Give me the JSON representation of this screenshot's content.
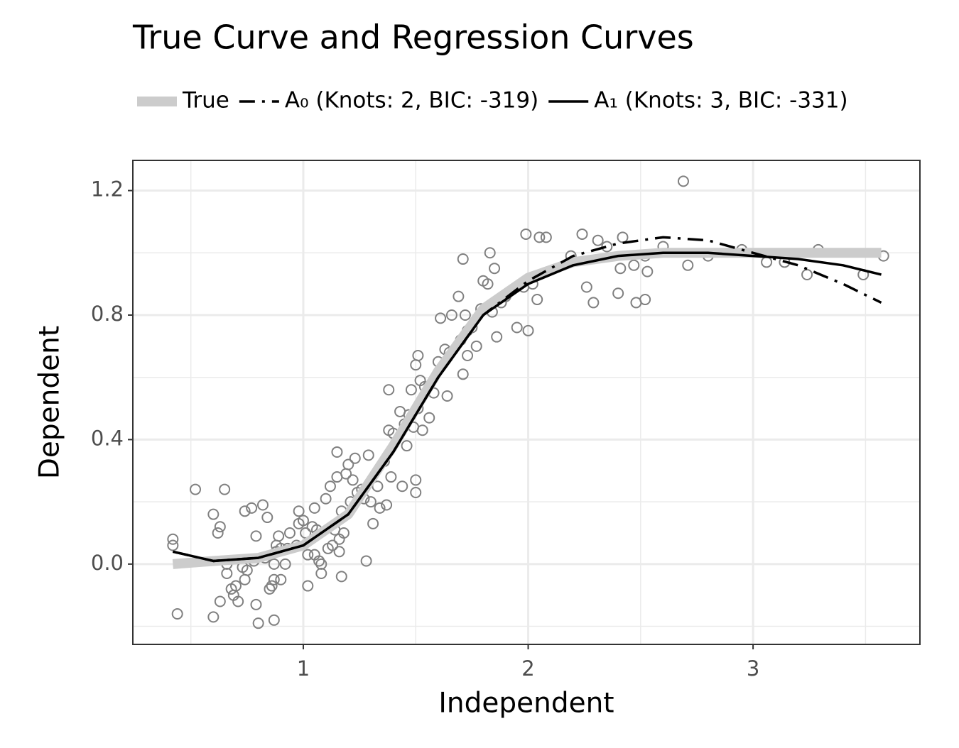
{
  "chart_data": {
    "type": "line",
    "title": "True Curve and Regression Curves",
    "xlabel": "Independent",
    "ylabel": "Dependent",
    "xlim": [
      0.242,
      3.742
    ],
    "ylim": [
      -0.258,
      1.297
    ],
    "xticks": [
      1,
      2,
      3
    ],
    "yticks": [
      {
        "value": 0,
        "label": "0.0"
      },
      0.4,
      0.8,
      1.2
    ],
    "xminorticks": [
      0.5,
      1.5,
      2.5,
      3.5
    ],
    "yminorticks": [
      -0.2,
      0.2,
      0.6,
      1.0
    ],
    "grid": true,
    "legend": "top",
    "x": [
      0.42,
      0.6,
      0.8,
      1.0,
      1.2,
      1.4,
      1.6,
      1.8,
      2.0,
      2.2,
      2.4,
      2.6,
      2.8,
      3.0,
      3.2,
      3.4,
      3.57
    ],
    "series": [
      {
        "name": "True",
        "color": "#cccccc",
        "width": 14,
        "dash": "solid",
        "values": [
          0.0,
          0.01,
          0.02,
          0.06,
          0.16,
          0.38,
          0.62,
          0.82,
          0.92,
          0.97,
          0.99,
          1.0,
          1.0,
          1.0,
          1.0,
          1.0,
          1.0
        ]
      },
      {
        "name": "A₀ (Knots: 2, BIC: -319)",
        "color": "#000000",
        "width": 3.5,
        "dash": "dashdot",
        "values": [
          0.04,
          0.01,
          0.02,
          0.06,
          0.16,
          0.36,
          0.6,
          0.8,
          0.91,
          0.99,
          1.03,
          1.05,
          1.04,
          1.0,
          0.96,
          0.9,
          0.84
        ]
      },
      {
        "name": "A₁ (Knots: 3, BIC: -331)",
        "color": "#000000",
        "width": 3.5,
        "dash": "solid",
        "values": [
          0.04,
          0.01,
          0.02,
          0.06,
          0.16,
          0.36,
          0.6,
          0.8,
          0.9,
          0.96,
          0.99,
          1.0,
          1.0,
          0.99,
          0.98,
          0.96,
          0.93
        ]
      }
    ],
    "points": {
      "color": "#808080",
      "x": [
        0.42,
        0.42,
        0.44,
        0.52,
        0.6,
        0.62,
        0.63,
        0.6,
        0.63,
        0.65,
        0.66,
        0.66,
        0.68,
        0.69,
        0.7,
        0.71,
        0.73,
        0.74,
        0.74,
        0.75,
        0.77,
        0.78,
        0.79,
        0.79,
        0.8,
        0.82,
        0.83,
        0.84,
        0.85,
        0.86,
        0.87,
        0.87,
        0.87,
        0.88,
        0.88,
        0.89,
        0.9,
        0.9,
        0.92,
        0.93,
        0.94,
        0.97,
        0.98,
        0.98,
        1.0,
        1.01,
        1.02,
        1.02,
        1.04,
        1.05,
        1.05,
        1.06,
        1.07,
        1.08,
        1.08,
        1.1,
        1.11,
        1.12,
        1.13,
        1.14,
        1.15,
        1.15,
        1.16,
        1.16,
        1.17,
        1.17,
        1.18,
        1.19,
        1.2,
        1.21,
        1.22,
        1.23,
        1.24,
        1.26,
        1.27,
        1.28,
        1.29,
        1.3,
        1.31,
        1.33,
        1.34,
        1.36,
        1.37,
        1.38,
        1.38,
        1.39,
        1.4,
        1.43,
        1.44,
        1.45,
        1.46,
        1.47,
        1.48,
        1.49,
        1.5,
        1.5,
        1.5,
        1.51,
        1.51,
        1.52,
        1.53,
        1.54,
        1.56,
        1.58,
        1.6,
        1.61,
        1.63,
        1.64,
        1.65,
        1.66,
        1.69,
        1.7,
        1.71,
        1.71,
        1.72,
        1.73,
        1.73,
        1.75,
        1.77,
        1.79,
        1.8,
        1.82,
        1.83,
        1.84,
        1.85,
        1.86,
        1.88,
        1.9,
        1.95,
        1.98,
        1.99,
        2.0,
        2.02,
        2.04,
        2.05,
        2.08,
        2.19,
        2.24,
        2.26,
        2.29,
        2.31,
        2.35,
        2.4,
        2.41,
        2.42,
        2.47,
        2.48,
        2.52,
        2.52,
        2.53,
        2.6,
        2.69,
        2.71,
        2.8,
        2.95,
        3.06,
        3.14,
        3.24,
        3.29,
        3.49,
        3.58
      ],
      "y": [
        0.08,
        0.06,
        -0.16,
        0.24,
        0.16,
        0.1,
        0.12,
        -0.17,
        -0.12,
        0.24,
        0.0,
        -0.03,
        -0.08,
        -0.1,
        -0.07,
        -0.12,
        -0.01,
        0.17,
        -0.05,
        -0.02,
        0.18,
        0.01,
        0.09,
        -0.13,
        -0.19,
        0.19,
        0.02,
        0.15,
        -0.08,
        -0.07,
        -0.18,
        0.0,
        -0.05,
        0.06,
        0.04,
        0.09,
        -0.05,
        0.05,
        0.0,
        0.05,
        0.1,
        0.06,
        0.17,
        0.13,
        0.14,
        0.1,
        -0.07,
        0.03,
        0.12,
        0.18,
        0.03,
        0.11,
        0.01,
        -0.03,
        0.0,
        0.21,
        0.05,
        0.25,
        0.06,
        0.11,
        0.36,
        0.28,
        0.08,
        0.04,
        -0.04,
        0.17,
        0.1,
        0.29,
        0.32,
        0.2,
        0.27,
        0.34,
        0.23,
        0.24,
        0.21,
        0.01,
        0.35,
        0.2,
        0.13,
        0.25,
        0.18,
        0.33,
        0.19,
        0.43,
        0.56,
        0.28,
        0.42,
        0.49,
        0.25,
        0.45,
        0.38,
        0.48,
        0.56,
        0.44,
        0.27,
        0.23,
        0.64,
        0.5,
        0.67,
        0.59,
        0.43,
        0.57,
        0.47,
        0.55,
        0.65,
        0.79,
        0.69,
        0.54,
        0.68,
        0.8,
        0.86,
        0.72,
        0.98,
        0.61,
        0.8,
        0.75,
        0.67,
        0.76,
        0.7,
        0.82,
        0.91,
        0.9,
        1.0,
        0.81,
        0.95,
        0.73,
        0.84,
        0.86,
        0.76,
        0.89,
        1.06,
        0.75,
        0.9,
        0.85,
        1.05,
        1.05,
        0.99,
        1.06,
        0.89,
        0.84,
        1.04,
        1.02,
        0.87,
        0.95,
        1.05,
        0.96,
        0.84,
        0.85,
        0.99,
        0.94,
        1.02,
        1.23,
        0.96,
        0.99,
        1.01,
        0.97,
        0.97,
        0.93,
        1.01,
        0.93,
        0.99
      ]
    }
  }
}
